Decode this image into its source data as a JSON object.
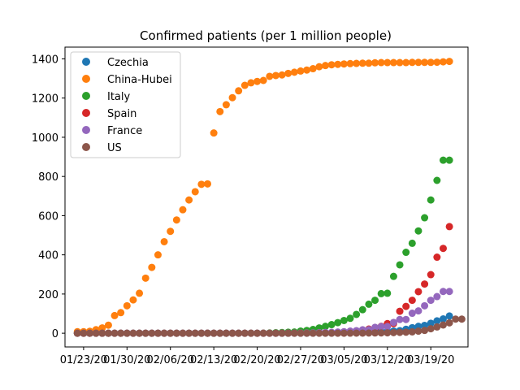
{
  "chart_data": {
    "type": "scatter",
    "title": "Confirmed patients (per 1 million people)",
    "xlabel": "",
    "ylabel": "",
    "x_axis": {
      "type": "date",
      "start": "2020-01-22",
      "end": "2020-03-22",
      "range": [
        "2020-01-20",
        "2020-03-25"
      ],
      "ticks": [
        "2020-01-23",
        "2020-01-30",
        "2020-02-06",
        "2020-02-13",
        "2020-02-20",
        "2020-02-27",
        "2020-03-05",
        "2020-03-12",
        "2020-03-19"
      ],
      "tick_labels": [
        "01/23/20",
        "01/30/20",
        "02/06/20",
        "02/13/20",
        "02/20/20",
        "02/27/20",
        "03/05/20",
        "03/12/20",
        "03/19/20"
      ]
    },
    "y_axis": {
      "range": [
        -70,
        1460
      ],
      "ticks": [
        0,
        200,
        400,
        600,
        800,
        1000,
        1200,
        1400
      ],
      "tick_labels": [
        "0",
        "200",
        "400",
        "600",
        "800",
        "1000",
        "1200",
        "1400"
      ]
    },
    "grid": false,
    "legend": {
      "position": "top-left"
    },
    "series": [
      {
        "name": "Czechia",
        "color": "#1f77b4",
        "values": [
          0,
          0,
          0,
          0,
          0,
          0,
          0,
          0,
          0,
          0,
          0,
          0,
          0,
          0,
          0,
          0,
          0,
          0,
          0,
          0,
          0,
          0,
          0,
          0,
          0,
          0,
          0,
          0,
          0,
          0,
          0,
          0,
          0,
          0,
          0,
          0,
          0,
          0,
          0.3,
          0.5,
          0.5,
          0.8,
          1.2,
          1.8,
          2.9,
          3.0,
          3.6,
          4.4,
          6.0,
          9.0,
          9.5,
          11,
          13,
          20,
          28,
          35,
          40,
          51,
          63,
          73,
          88
        ]
      },
      {
        "name": "China-Hubei",
        "color": "#ff7f0e",
        "values": [
          8,
          8,
          10,
          18,
          27,
          41,
          90,
          105,
          140,
          170,
          204,
          281,
          336,
          400,
          467,
          520,
          578,
          630,
          680,
          722,
          760,
          762,
          1022,
          1131,
          1166,
          1202,
          1237,
          1265,
          1278,
          1285,
          1290,
          1311,
          1315,
          1318,
          1326,
          1332,
          1338,
          1343,
          1350,
          1360,
          1366,
          1370,
          1372,
          1374,
          1376,
          1377,
          1378,
          1378,
          1380,
          1381,
          1381,
          1381,
          1381,
          1381,
          1382,
          1382,
          1382,
          1382,
          1383,
          1385,
          1387
        ]
      },
      {
        "name": "Italy",
        "color": "#2ca02c",
        "values": [
          0,
          0,
          0,
          0,
          0,
          0,
          0,
          0,
          0,
          0,
          0.03,
          0.03,
          0.03,
          0.03,
          0.03,
          0.03,
          0.05,
          0.05,
          0.05,
          0.05,
          0.05,
          0.05,
          0.05,
          0.05,
          0.05,
          0.05,
          0.05,
          0.05,
          0.05,
          0.05,
          0.3,
          1.3,
          2.6,
          3.8,
          5,
          6,
          11,
          14,
          19,
          27,
          35,
          44,
          54,
          65,
          76,
          96,
          120,
          148,
          168,
          202,
          204,
          290,
          349,
          413,
          459,
          522,
          589,
          680,
          780,
          883,
          883
        ]
      },
      {
        "name": "Spain",
        "color": "#d62728",
        "values": [
          0,
          0,
          0,
          0,
          0,
          0,
          0,
          0,
          0,
          0,
          0,
          0.02,
          0.02,
          0.02,
          0.02,
          0.02,
          0.02,
          0.02,
          0.04,
          0.04,
          0.04,
          0.04,
          0.04,
          0.04,
          0.04,
          0.04,
          0.04,
          0.04,
          0.04,
          0.04,
          0.04,
          0.04,
          0.04,
          0.1,
          0.3,
          0.7,
          0.9,
          1.0,
          1.2,
          1.8,
          2.5,
          3.0,
          4.6,
          5.5,
          8.5,
          10.8,
          14.3,
          21,
          25,
          35,
          49,
          49,
          112,
          137,
          168,
          212,
          251,
          299,
          388,
          433,
          544
        ]
      },
      {
        "name": "France",
        "color": "#9467bd",
        "values": [
          0,
          0,
          0.03,
          0.04,
          0.04,
          0.06,
          0.06,
          0.06,
          0.08,
          0.08,
          0.08,
          0.09,
          0.09,
          0.09,
          0.09,
          0.09,
          0.09,
          0.09,
          0.17,
          0.17,
          0.17,
          0.17,
          0.17,
          0.17,
          0.18,
          0.18,
          0.18,
          0.18,
          0.18,
          0.18,
          0.18,
          0.18,
          0.18,
          0.2,
          0.3,
          0.6,
          0.9,
          1.4,
          1.8,
          2.9,
          3.9,
          4.4,
          6.0,
          7.8,
          10.7,
          13,
          17.6,
          18,
          30,
          34,
          34,
          55,
          70,
          70,
          102,
          114,
          140,
          168,
          187,
          213,
          213
        ]
      },
      {
        "name": "US",
        "color": "#8c564b",
        "values": [
          0,
          0,
          0,
          0,
          0,
          0,
          0,
          0,
          0,
          0,
          0,
          0,
          0,
          0,
          0,
          0,
          0,
          0,
          0,
          0,
          0,
          0,
          0,
          0,
          0,
          0,
          0,
          0,
          0,
          0,
          0,
          0,
          0,
          0,
          0,
          0,
          0,
          0,
          0,
          0,
          0,
          0,
          0,
          0,
          0.3,
          0.5,
          0.7,
          1.0,
          1.3,
          1.6,
          2.2,
          3.2,
          4.3,
          5.2,
          7.0,
          10.8,
          14.4,
          23,
          32,
          42,
          53,
          72,
          72
        ]
      }
    ]
  }
}
